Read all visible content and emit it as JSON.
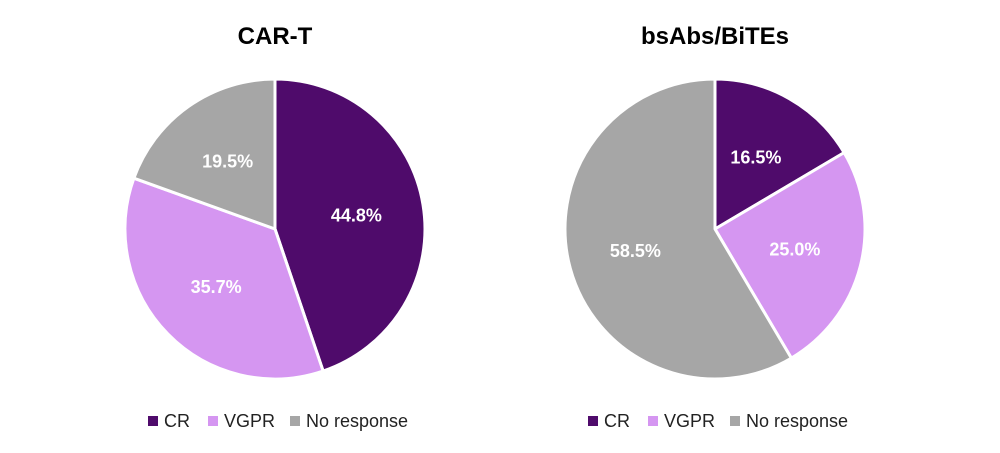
{
  "chart_data": [
    {
      "type": "pie",
      "title": "CAR-T",
      "categories": [
        "CR",
        "VGPR",
        "No response"
      ],
      "values": [
        44.8,
        35.7,
        19.5
      ],
      "labels": [
        "44.8%",
        "35.7%",
        "19.5%"
      ],
      "colors": [
        "#4f0b6b",
        "#d596f1",
        "#a6a6a6"
      ],
      "legend_position": "bottom",
      "start": "12 o'clock",
      "direction": "clockwise"
    },
    {
      "type": "pie",
      "title": "bsAbs/BiTEs",
      "categories": [
        "CR",
        "VGPR",
        "No response"
      ],
      "values": [
        16.5,
        25.0,
        58.5
      ],
      "labels": [
        "16.5%",
        "25.0%",
        "58.5%"
      ],
      "colors": [
        "#4f0b6b",
        "#d596f1",
        "#a6a6a6"
      ],
      "legend_position": "bottom",
      "start": "12 o'clock",
      "direction": "clockwise"
    }
  ]
}
